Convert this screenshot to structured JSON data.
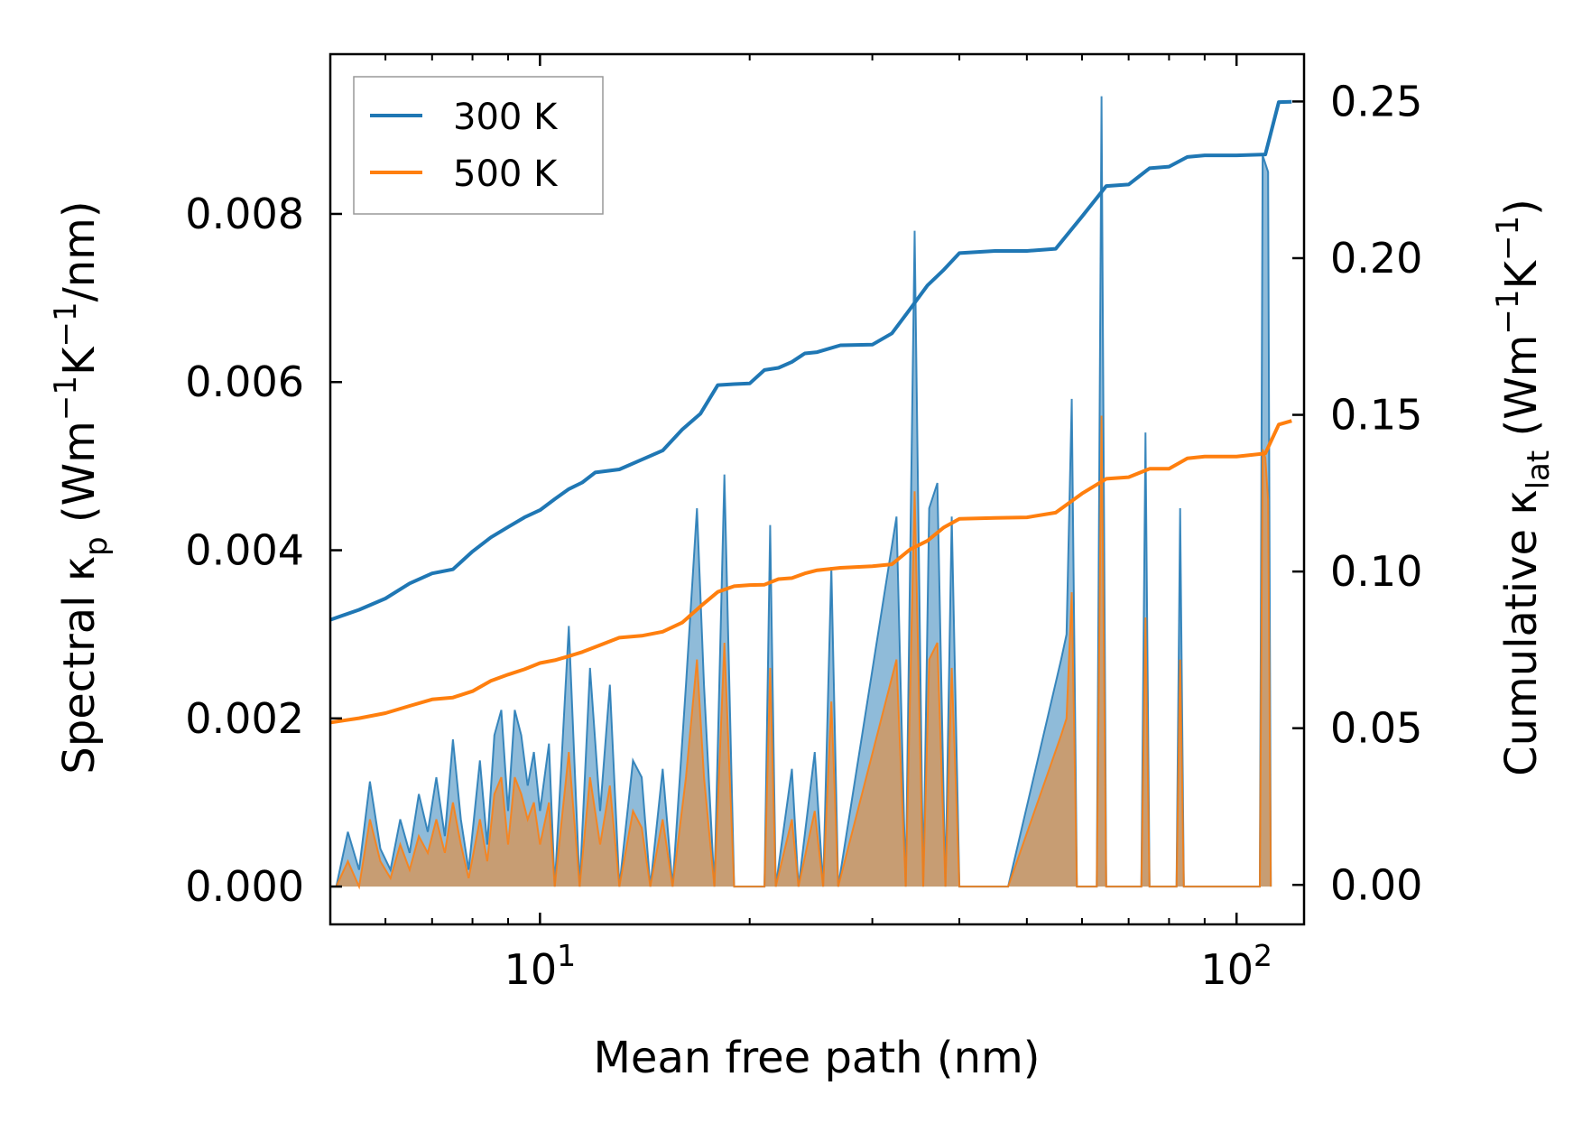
{
  "chart_data": {
    "type": "line",
    "xscale": "log",
    "xlim": [
      5.0,
      125.0
    ],
    "ylim_left": [
      -0.00045,
      0.0099
    ],
    "ylim_right": [
      -0.0126,
      0.2651
    ],
    "xlabel": "Mean free path (nm)",
    "ylabel_left": "Spectral κp (Wm−1K−1/nm)",
    "ylabel_left_parts": {
      "a": "Spectral κ",
      "b": "p",
      "c": " (Wm",
      "d": "−1",
      "e": "K",
      "f": "−1",
      "g": "/nm)"
    },
    "ylabel_right_parts": {
      "a": "Cumulative κ",
      "b": "lat",
      "c": " (Wm",
      "d": "−1",
      "e": "K",
      "f": "−1",
      "g": ")"
    },
    "xticks": [
      {
        "value": 10,
        "base": "10",
        "exp": "1"
      },
      {
        "value": 100,
        "base": "10",
        "exp": "2"
      }
    ],
    "xticks_minor": [
      6,
      7,
      8,
      9,
      20,
      30,
      40,
      50,
      60,
      70,
      80,
      90
    ],
    "yticks_left": [
      {
        "value": 0.0,
        "label": "0.000"
      },
      {
        "value": 0.002,
        "label": "0.002"
      },
      {
        "value": 0.004,
        "label": "0.004"
      },
      {
        "value": 0.006,
        "label": "0.006"
      },
      {
        "value": 0.008,
        "label": "0.008"
      }
    ],
    "yticks_right": [
      {
        "value": 0.0,
        "label": "0.00"
      },
      {
        "value": 0.05,
        "label": "0.05"
      },
      {
        "value": 0.1,
        "label": "0.10"
      },
      {
        "value": 0.15,
        "label": "0.15"
      },
      {
        "value": 0.2,
        "label": "0.20"
      },
      {
        "value": 0.25,
        "label": "0.25"
      }
    ],
    "legend": {
      "position": "top-left",
      "entries": [
        {
          "name": "300 K",
          "color": "#1f77b4"
        },
        {
          "name": "500 K",
          "color": "#ff7f0e"
        }
      ]
    },
    "series": [
      {
        "name": "300 K",
        "color": "#1f77b4",
        "cumulative": [
          [
            5.0,
            0.0846
          ],
          [
            5.5,
            0.0878
          ],
          [
            6.0,
            0.0914
          ],
          [
            6.5,
            0.0962
          ],
          [
            7.0,
            0.0994
          ],
          [
            7.5,
            0.1007
          ],
          [
            8.0,
            0.1064
          ],
          [
            8.5,
            0.1109
          ],
          [
            9.0,
            0.1142
          ],
          [
            9.5,
            0.1173
          ],
          [
            10.0,
            0.1196
          ],
          [
            10.5,
            0.1231
          ],
          [
            11.0,
            0.1263
          ],
          [
            11.5,
            0.1284
          ],
          [
            12.0,
            0.1316
          ],
          [
            13.0,
            0.1326
          ],
          [
            14.0,
            0.1357
          ],
          [
            15.0,
            0.1386
          ],
          [
            16.0,
            0.1453
          ],
          [
            17.0,
            0.1504
          ],
          [
            18.0,
            0.1595
          ],
          [
            19.0,
            0.1598
          ],
          [
            20.0,
            0.16
          ],
          [
            21.0,
            0.1643
          ],
          [
            22.0,
            0.165
          ],
          [
            23.0,
            0.1669
          ],
          [
            24.0,
            0.1696
          ],
          [
            25.0,
            0.17
          ],
          [
            27.0,
            0.1722
          ],
          [
            30.0,
            0.1724
          ],
          [
            32.0,
            0.176
          ],
          [
            34.0,
            0.1838
          ],
          [
            36.0,
            0.1913
          ],
          [
            38.0,
            0.1963
          ],
          [
            40.0,
            0.2016
          ],
          [
            45.0,
            0.2023
          ],
          [
            50.0,
            0.2023
          ],
          [
            55.0,
            0.203
          ],
          [
            60.0,
            0.2133
          ],
          [
            65.0,
            0.223
          ],
          [
            70.0,
            0.2235
          ],
          [
            75.0,
            0.2287
          ],
          [
            80.0,
            0.2292
          ],
          [
            85.0,
            0.2323
          ],
          [
            90.0,
            0.2328
          ],
          [
            100.0,
            0.2328
          ],
          [
            110.0,
            0.2331
          ],
          [
            115.0,
            0.2498
          ],
          [
            120.0,
            0.2499
          ]
        ],
        "spectral_peaks": [
          [
            5.1,
            0.0
          ],
          [
            5.3,
            0.00065
          ],
          [
            5.5,
            0.0002
          ],
          [
            5.7,
            0.00125
          ],
          [
            5.9,
            0.00045
          ],
          [
            6.1,
            0.0002
          ],
          [
            6.3,
            0.0008
          ],
          [
            6.5,
            0.0004
          ],
          [
            6.7,
            0.0011
          ],
          [
            6.9,
            0.00065
          ],
          [
            7.1,
            0.0013
          ],
          [
            7.3,
            0.0006
          ],
          [
            7.5,
            0.00175
          ],
          [
            7.7,
            0.0008
          ],
          [
            7.9,
            0.0002
          ],
          [
            8.2,
            0.0015
          ],
          [
            8.4,
            0.0005
          ],
          [
            8.6,
            0.0018
          ],
          [
            8.8,
            0.0021
          ],
          [
            9.0,
            0.0009
          ],
          [
            9.2,
            0.0021
          ],
          [
            9.4,
            0.0018
          ],
          [
            9.6,
            0.0012
          ],
          [
            9.8,
            0.0016
          ],
          [
            10.0,
            0.0009
          ],
          [
            10.3,
            0.0017
          ],
          [
            10.5,
            0.0
          ],
          [
            11.0,
            0.0031
          ],
          [
            11.4,
            0.0
          ],
          [
            11.8,
            0.0026
          ],
          [
            12.2,
            0.0009
          ],
          [
            12.6,
            0.0024
          ],
          [
            13.0,
            0.0
          ],
          [
            13.6,
            0.0015
          ],
          [
            14.0,
            0.0013
          ],
          [
            14.4,
            0.0
          ],
          [
            15.0,
            0.0014
          ],
          [
            15.5,
            0.0
          ],
          [
            16.2,
            0.0024
          ],
          [
            16.8,
            0.0045
          ],
          [
            17.2,
            0.0024
          ],
          [
            17.8,
            0.0
          ],
          [
            18.4,
            0.0049
          ],
          [
            19.0,
            0.0
          ],
          [
            21.0,
            0.0
          ],
          [
            21.4,
            0.0043
          ],
          [
            21.8,
            0.0
          ],
          [
            23.0,
            0.0014
          ],
          [
            23.5,
            0.0
          ],
          [
            24.8,
            0.0016
          ],
          [
            25.5,
            0.0
          ],
          [
            26.2,
            0.0038
          ],
          [
            26.8,
            0.0
          ],
          [
            32.5,
            0.0044
          ],
          [
            33.5,
            0.0
          ],
          [
            34.5,
            0.0078
          ],
          [
            35.5,
            0.0
          ],
          [
            36.2,
            0.0045
          ],
          [
            37.2,
            0.0048
          ],
          [
            38.2,
            0.0
          ],
          [
            39.0,
            0.0044
          ],
          [
            40.0,
            0.0
          ],
          [
            47.0,
            0.0
          ],
          [
            56.0,
            0.0027
          ],
          [
            57.0,
            0.003
          ],
          [
            58.0,
            0.0058
          ],
          [
            59.0,
            0.0
          ],
          [
            63.0,
            0.0
          ],
          [
            64.0,
            0.0094
          ],
          [
            65.0,
            0.0
          ],
          [
            73.0,
            0.0
          ],
          [
            74.0,
            0.0054
          ],
          [
            75.0,
            0.0
          ],
          [
            82.0,
            0.0
          ],
          [
            83.0,
            0.0045
          ],
          [
            84.0,
            0.0
          ],
          [
            108.0,
            0.0
          ],
          [
            109.0,
            0.0087
          ],
          [
            110.0,
            0.0086
          ],
          [
            111.0,
            0.0085
          ],
          [
            112.0,
            0.0
          ]
        ]
      },
      {
        "name": "500 K",
        "color": "#ff7f0e",
        "cumulative": [
          [
            5.0,
            0.0518
          ],
          [
            5.5,
            0.0532
          ],
          [
            6.0,
            0.0548
          ],
          [
            6.5,
            0.0571
          ],
          [
            7.0,
            0.0592
          ],
          [
            7.5,
            0.0598
          ],
          [
            8.0,
            0.0618
          ],
          [
            8.5,
            0.0651
          ],
          [
            9.0,
            0.0671
          ],
          [
            9.5,
            0.0688
          ],
          [
            10.0,
            0.0708
          ],
          [
            10.5,
            0.0717
          ],
          [
            11.0,
            0.073
          ],
          [
            11.5,
            0.0743
          ],
          [
            12.0,
            0.0759
          ],
          [
            13.0,
            0.0789
          ],
          [
            14.0,
            0.0795
          ],
          [
            15.0,
            0.0808
          ],
          [
            16.0,
            0.0837
          ],
          [
            17.0,
            0.0889
          ],
          [
            18.0,
            0.0935
          ],
          [
            19.0,
            0.0953
          ],
          [
            20.0,
            0.0957
          ],
          [
            21.0,
            0.0958
          ],
          [
            22.0,
            0.0976
          ],
          [
            23.0,
            0.0979
          ],
          [
            24.0,
            0.0994
          ],
          [
            25.0,
            0.1004
          ],
          [
            27.0,
            0.1012
          ],
          [
            30.0,
            0.1017
          ],
          [
            32.0,
            0.1023
          ],
          [
            34.0,
            0.1071
          ],
          [
            36.0,
            0.1098
          ],
          [
            38.0,
            0.1141
          ],
          [
            40.0,
            0.1168
          ],
          [
            45.0,
            0.1171
          ],
          [
            50.0,
            0.1173
          ],
          [
            55.0,
            0.1188
          ],
          [
            60.0,
            0.1249
          ],
          [
            65.0,
            0.1296
          ],
          [
            70.0,
            0.1301
          ],
          [
            75.0,
            0.1328
          ],
          [
            80.0,
            0.1328
          ],
          [
            85.0,
            0.1361
          ],
          [
            90.0,
            0.1367
          ],
          [
            100.0,
            0.1367
          ],
          [
            110.0,
            0.1377
          ],
          [
            115.0,
            0.1469
          ],
          [
            120.0,
            0.1481
          ]
        ],
        "spectral_peaks": [
          [
            5.1,
            0.0
          ],
          [
            5.3,
            0.0003
          ],
          [
            5.5,
            0.0
          ],
          [
            5.7,
            0.0008
          ],
          [
            5.9,
            0.0003
          ],
          [
            6.1,
            0.0001
          ],
          [
            6.3,
            0.0005
          ],
          [
            6.5,
            0.0002
          ],
          [
            6.7,
            0.0006
          ],
          [
            6.9,
            0.0004
          ],
          [
            7.1,
            0.0008
          ],
          [
            7.3,
            0.0004
          ],
          [
            7.5,
            0.001
          ],
          [
            7.7,
            0.0005
          ],
          [
            7.9,
            0.0001
          ],
          [
            8.2,
            0.0008
          ],
          [
            8.4,
            0.0003
          ],
          [
            8.6,
            0.0011
          ],
          [
            8.8,
            0.0013
          ],
          [
            9.0,
            0.0005
          ],
          [
            9.2,
            0.0013
          ],
          [
            9.4,
            0.0011
          ],
          [
            9.6,
            0.0008
          ],
          [
            9.8,
            0.001
          ],
          [
            10.0,
            0.0005
          ],
          [
            10.3,
            0.001
          ],
          [
            10.5,
            0.0
          ],
          [
            11.0,
            0.0016
          ],
          [
            11.4,
            0.0
          ],
          [
            11.8,
            0.0013
          ],
          [
            12.2,
            0.0005
          ],
          [
            12.6,
            0.0012
          ],
          [
            13.0,
            0.0
          ],
          [
            13.6,
            0.0009
          ],
          [
            14.0,
            0.0007
          ],
          [
            14.4,
            0.0
          ],
          [
            15.0,
            0.0008
          ],
          [
            15.5,
            0.0
          ],
          [
            16.2,
            0.0013
          ],
          [
            16.8,
            0.0027
          ],
          [
            17.2,
            0.0013
          ],
          [
            17.8,
            0.0
          ],
          [
            18.4,
            0.0029
          ],
          [
            19.0,
            0.0
          ],
          [
            21.0,
            0.0
          ],
          [
            21.4,
            0.0026
          ],
          [
            21.8,
            0.0
          ],
          [
            23.0,
            0.0008
          ],
          [
            23.5,
            0.0
          ],
          [
            24.8,
            0.0009
          ],
          [
            25.5,
            0.0
          ],
          [
            26.2,
            0.0022
          ],
          [
            26.8,
            0.0
          ],
          [
            32.5,
            0.0027
          ],
          [
            33.5,
            0.0
          ],
          [
            34.5,
            0.0047
          ],
          [
            35.5,
            0.0
          ],
          [
            36.2,
            0.0027
          ],
          [
            37.2,
            0.0029
          ],
          [
            38.2,
            0.0
          ],
          [
            39.0,
            0.0026
          ],
          [
            40.0,
            0.0
          ],
          [
            47.0,
            0.0
          ],
          [
            56.0,
            0.0018
          ],
          [
            57.0,
            0.002
          ],
          [
            58.0,
            0.0035
          ],
          [
            59.0,
            0.0
          ],
          [
            63.0,
            0.0
          ],
          [
            64.0,
            0.0056
          ],
          [
            65.0,
            0.0
          ],
          [
            73.0,
            0.0
          ],
          [
            74.0,
            0.0032
          ],
          [
            75.0,
            0.0
          ],
          [
            82.0,
            0.0
          ],
          [
            83.0,
            0.0027
          ],
          [
            84.0,
            0.0
          ],
          [
            108.0,
            0.0
          ],
          [
            109.0,
            0.0052
          ],
          [
            110.0,
            0.0051
          ],
          [
            111.0,
            0.0046
          ],
          [
            112.0,
            0.0
          ]
        ]
      }
    ]
  }
}
